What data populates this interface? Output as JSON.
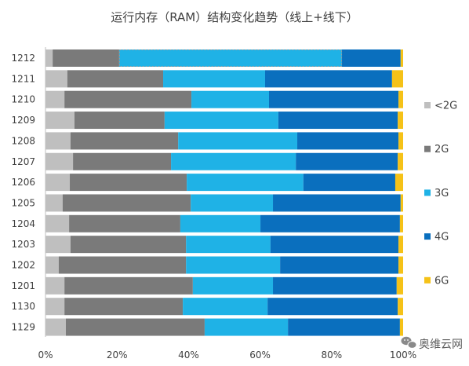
{
  "chart_data": {
    "type": "bar",
    "orientation": "horizontal",
    "stacking": "percent",
    "title": "运行内存（RAM）结构变化趋势（线上+线下）",
    "categories": [
      "1212",
      "1211",
      "1210",
      "1209",
      "1208",
      "1207",
      "1206",
      "1205",
      "1204",
      "1203",
      "1202",
      "1201",
      "1130",
      "1129"
    ],
    "series": [
      {
        "name": "<2G",
        "color": "#BFBFBF",
        "values": [
          2.0,
          6.1,
          5.3,
          8.1,
          7.0,
          7.7,
          6.8,
          4.8,
          6.6,
          7.0,
          3.7,
          5.3,
          5.3,
          5.7
        ]
      },
      {
        "name": "2G",
        "color": "#7A7A7A",
        "values": [
          18.6,
          26.8,
          35.5,
          25.2,
          30.1,
          27.4,
          32.7,
          35.8,
          31.1,
          32.3,
          35.6,
          35.9,
          33.1,
          38.8
        ]
      },
      {
        "name": "3G",
        "color": "#1FB2E6",
        "values": [
          62.3,
          28.5,
          21.7,
          31.8,
          33.3,
          34.9,
          32.6,
          23.0,
          22.4,
          23.6,
          26.3,
          22.4,
          23.7,
          23.3
        ]
      },
      {
        "name": "4G",
        "color": "#0A6FBE",
        "values": [
          16.4,
          35.5,
          36.2,
          33.4,
          28.3,
          28.5,
          25.7,
          35.7,
          39.0,
          35.8,
          33.1,
          34.6,
          36.4,
          31.3
        ]
      },
      {
        "name": "6G",
        "color": "#F5C218",
        "values": [
          0.7,
          3.1,
          1.3,
          1.5,
          1.3,
          1.5,
          2.2,
          0.7,
          0.9,
          1.3,
          1.3,
          1.8,
          1.5,
          0.9
        ]
      }
    ],
    "xlim": [
      0,
      100
    ],
    "xticks": [
      0,
      20,
      40,
      60,
      80,
      100
    ],
    "xtick_labels": [
      "0%",
      "20%",
      "40%",
      "60%",
      "80%",
      "100%"
    ],
    "grid": false,
    "legend": "right",
    "selection": {
      "category_index": 0,
      "series_index": 2
    }
  },
  "watermark": {
    "text": "奥维云网",
    "icon": "wechat-icon"
  }
}
